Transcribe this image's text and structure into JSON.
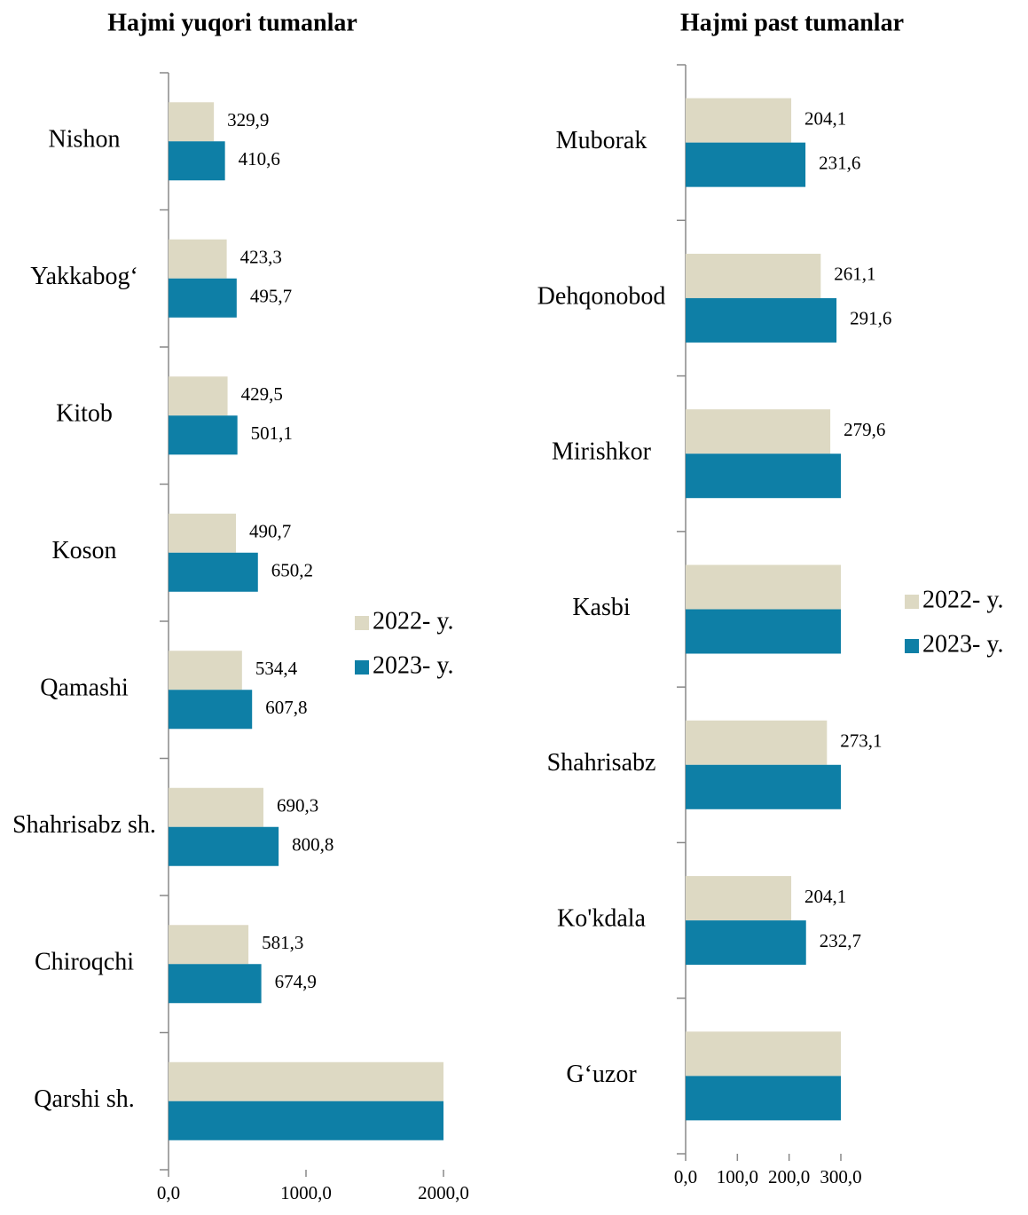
{
  "chart_data": [
    {
      "type": "barh",
      "title": "Hajmi yuqori tumanlar",
      "categories": [
        "Nishon",
        "Yakkabog‘",
        "Kitob",
        "Koson",
        "Qamashi",
        "Shahrisabz sh.",
        "Chiroqchi",
        "Qarshi sh."
      ],
      "series": [
        {
          "name": "2022- y.",
          "color": "#ddd9c3",
          "values": [
            329.9,
            423.3,
            429.5,
            490.7,
            534.4,
            690.3,
            581.3,
            2000
          ],
          "value_labels": [
            "329,9",
            "423,3",
            "429,5",
            "490,7",
            "534,4",
            "690,3",
            "581,3",
            null
          ]
        },
        {
          "name": "2023- y.",
          "color": "#0e7fa6",
          "values": [
            410.6,
            495.7,
            501.1,
            650.2,
            607.8,
            800.8,
            674.9,
            2000
          ],
          "value_labels": [
            "410,6",
            "495,7",
            "501,1",
            "650,2",
            "607,8",
            "800,8",
            "674,9",
            null
          ]
        }
      ],
      "xlim": [
        0,
        2000
      ],
      "xticks": [
        {
          "value": 0,
          "label": "0,0"
        },
        {
          "value": 1000,
          "label": "1000,0"
        },
        {
          "value": 2000,
          "label": "2000,0"
        }
      ],
      "grid": false,
      "legend": "right"
    },
    {
      "type": "barh",
      "title": "Hajmi  past tumanlar",
      "categories": [
        "Muborak",
        "Dehqonobod",
        "Mirishkor",
        "Kasbi",
        "Shahrisabz",
        "Ko'kdala",
        "G‘uzor"
      ],
      "series": [
        {
          "name": "2022- y.",
          "color": "#ddd9c3",
          "values": [
            204.1,
            261.1,
            279.6,
            300,
            273.1,
            204.1,
            300
          ],
          "value_labels": [
            "204,1",
            "261,1",
            "279,6",
            null,
            "273,1",
            "204,1",
            null
          ]
        },
        {
          "name": "2023- y.",
          "color": "#0e7fa6",
          "values": [
            231.6,
            291.6,
            300,
            300,
            300,
            232.7,
            300
          ],
          "value_labels": [
            "231,6",
            "291,6",
            null,
            null,
            null,
            "232,7",
            null
          ]
        }
      ],
      "xlim": [
        0,
        300
      ],
      "xticks": [
        {
          "value": 0,
          "label": "0,0"
        },
        {
          "value": 100,
          "label": "100,0"
        },
        {
          "value": 200,
          "label": "200,0"
        },
        {
          "value": 300,
          "label": "300,0"
        }
      ],
      "grid": false,
      "legend": "right"
    }
  ]
}
